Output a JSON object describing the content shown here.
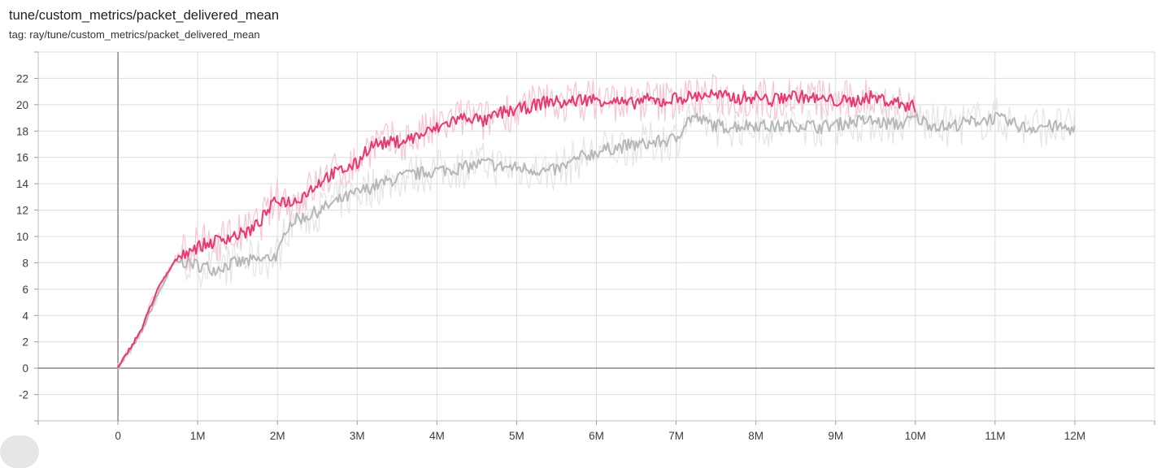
{
  "header": {
    "title": "tune/custom_metrics/packet_delivered_mean",
    "tag": "tag: ray/tune/custom_metrics/packet_delivered_mean"
  },
  "chart_data": {
    "type": "line",
    "xlim": [
      -1000000,
      13000000
    ],
    "ylim": [
      -4,
      24
    ],
    "x_ticks": [
      {
        "value": 0,
        "label": "0"
      },
      {
        "value": 1000000,
        "label": "1M"
      },
      {
        "value": 2000000,
        "label": "2M"
      },
      {
        "value": 3000000,
        "label": "3M"
      },
      {
        "value": 4000000,
        "label": "4M"
      },
      {
        "value": 5000000,
        "label": "5M"
      },
      {
        "value": 6000000,
        "label": "6M"
      },
      {
        "value": 7000000,
        "label": "7M"
      },
      {
        "value": 8000000,
        "label": "8M"
      },
      {
        "value": 9000000,
        "label": "9M"
      },
      {
        "value": 10000000,
        "label": "10M"
      },
      {
        "value": 11000000,
        "label": "11M"
      },
      {
        "value": 12000000,
        "label": "12M"
      }
    ],
    "y_ticks": [
      {
        "value": -2,
        "label": "-2"
      },
      {
        "value": 0,
        "label": "0"
      },
      {
        "value": 2,
        "label": "2"
      },
      {
        "value": 4,
        "label": "4"
      },
      {
        "value": 6,
        "label": "6"
      },
      {
        "value": 8,
        "label": "8"
      },
      {
        "value": 10,
        "label": "10"
      },
      {
        "value": 12,
        "label": "12"
      },
      {
        "value": 14,
        "label": "14"
      },
      {
        "value": 16,
        "label": "16"
      },
      {
        "value": 18,
        "label": "18"
      },
      {
        "value": 20,
        "label": "20"
      },
      {
        "value": 22,
        "label": "22"
      }
    ],
    "grid": true,
    "series": [
      {
        "color": "#e8386f",
        "raw_color": "#f8c3d4",
        "x": [
          0,
          100000,
          200000,
          300000,
          400000,
          500000,
          600000,
          700000,
          800000,
          900000,
          1000000,
          1100000,
          1200000,
          1300000,
          1400000,
          1500000,
          1600000,
          1700000,
          1800000,
          1900000,
          2000000,
          2200000,
          2400000,
          2600000,
          2800000,
          3000000,
          3100000,
          3200000,
          3400000,
          3600000,
          3800000,
          4000000,
          4200000,
          4400000,
          4600000,
          4800000,
          5000000,
          5200000,
          5400000,
          5600000,
          5800000,
          6000000,
          6200000,
          6400000,
          6600000,
          6800000,
          7000000,
          7200000,
          7400000,
          7600000,
          7800000,
          8000000,
          8200000,
          8400000,
          8600000,
          8800000,
          9000000,
          9200000,
          9400000,
          9600000,
          9800000,
          10000000
        ],
        "y": [
          0,
          1.0,
          2.0,
          3.0,
          4.6,
          6.0,
          7.0,
          8.0,
          8.7,
          9.0,
          9.2,
          9.4,
          9.6,
          9.8,
          10.0,
          10.1,
          10.3,
          10.6,
          11.3,
          12.1,
          12.8,
          12.6,
          13.5,
          14.5,
          15.0,
          15.5,
          16.5,
          17.0,
          17.1,
          17.3,
          17.7,
          18.2,
          18.8,
          19.1,
          18.7,
          19.4,
          19.6,
          19.9,
          20.3,
          20.1,
          20.4,
          20.4,
          20.3,
          20.0,
          20.4,
          20.2,
          20.5,
          20.6,
          20.8,
          20.6,
          20.5,
          20.6,
          20.3,
          20.7,
          20.6,
          20.4,
          20.3,
          20.2,
          20.6,
          20.4,
          20.1,
          19.8
        ]
      },
      {
        "color": "#b7b7b7",
        "raw_color": "#e4e4e4",
        "x": [
          0,
          100000,
          200000,
          300000,
          400000,
          500000,
          600000,
          700000,
          800000,
          900000,
          1000000,
          1100000,
          1200000,
          1300000,
          1400000,
          1600000,
          1800000,
          1900000,
          2000000,
          2050000,
          2100000,
          2200000,
          2400000,
          2600000,
          2800000,
          3000000,
          3200000,
          3400000,
          3600000,
          3800000,
          4000000,
          4200000,
          4400000,
          4600000,
          4800000,
          5000000,
          5200000,
          5400000,
          5600000,
          5800000,
          6000000,
          6200000,
          6400000,
          6600000,
          6800000,
          7000000,
          7100000,
          7200000,
          7400000,
          7600000,
          7800000,
          8000000,
          8200000,
          8400000,
          8600000,
          8800000,
          9000000,
          9200000,
          9400000,
          9600000,
          9800000,
          10000000,
          10200000,
          10400000,
          10600000,
          10800000,
          11000000,
          11200000,
          11400000,
          11600000,
          11800000,
          12000000
        ],
        "y": [
          0,
          0.9,
          1.8,
          2.8,
          4.2,
          5.6,
          6.8,
          8.0,
          8.1,
          8.0,
          7.8,
          7.7,
          7.5,
          7.7,
          7.9,
          8.1,
          8.2,
          8.4,
          8.6,
          9.2,
          10.6,
          11.2,
          11.6,
          12.2,
          12.8,
          13.3,
          13.8,
          14.2,
          14.6,
          14.8,
          15.0,
          15.1,
          15.3,
          15.6,
          15.3,
          15.2,
          15.1,
          14.9,
          15.3,
          16.0,
          16.4,
          16.7,
          16.9,
          17.0,
          17.2,
          17.4,
          18.5,
          19.1,
          18.6,
          18.3,
          18.4,
          18.5,
          18.3,
          18.4,
          18.5,
          18.3,
          18.5,
          18.7,
          18.8,
          18.6,
          18.5,
          19.0,
          18.5,
          18.3,
          18.6,
          18.8,
          19.0,
          18.6,
          18.2,
          18.4,
          18.3,
          18.1
        ]
      }
    ]
  }
}
